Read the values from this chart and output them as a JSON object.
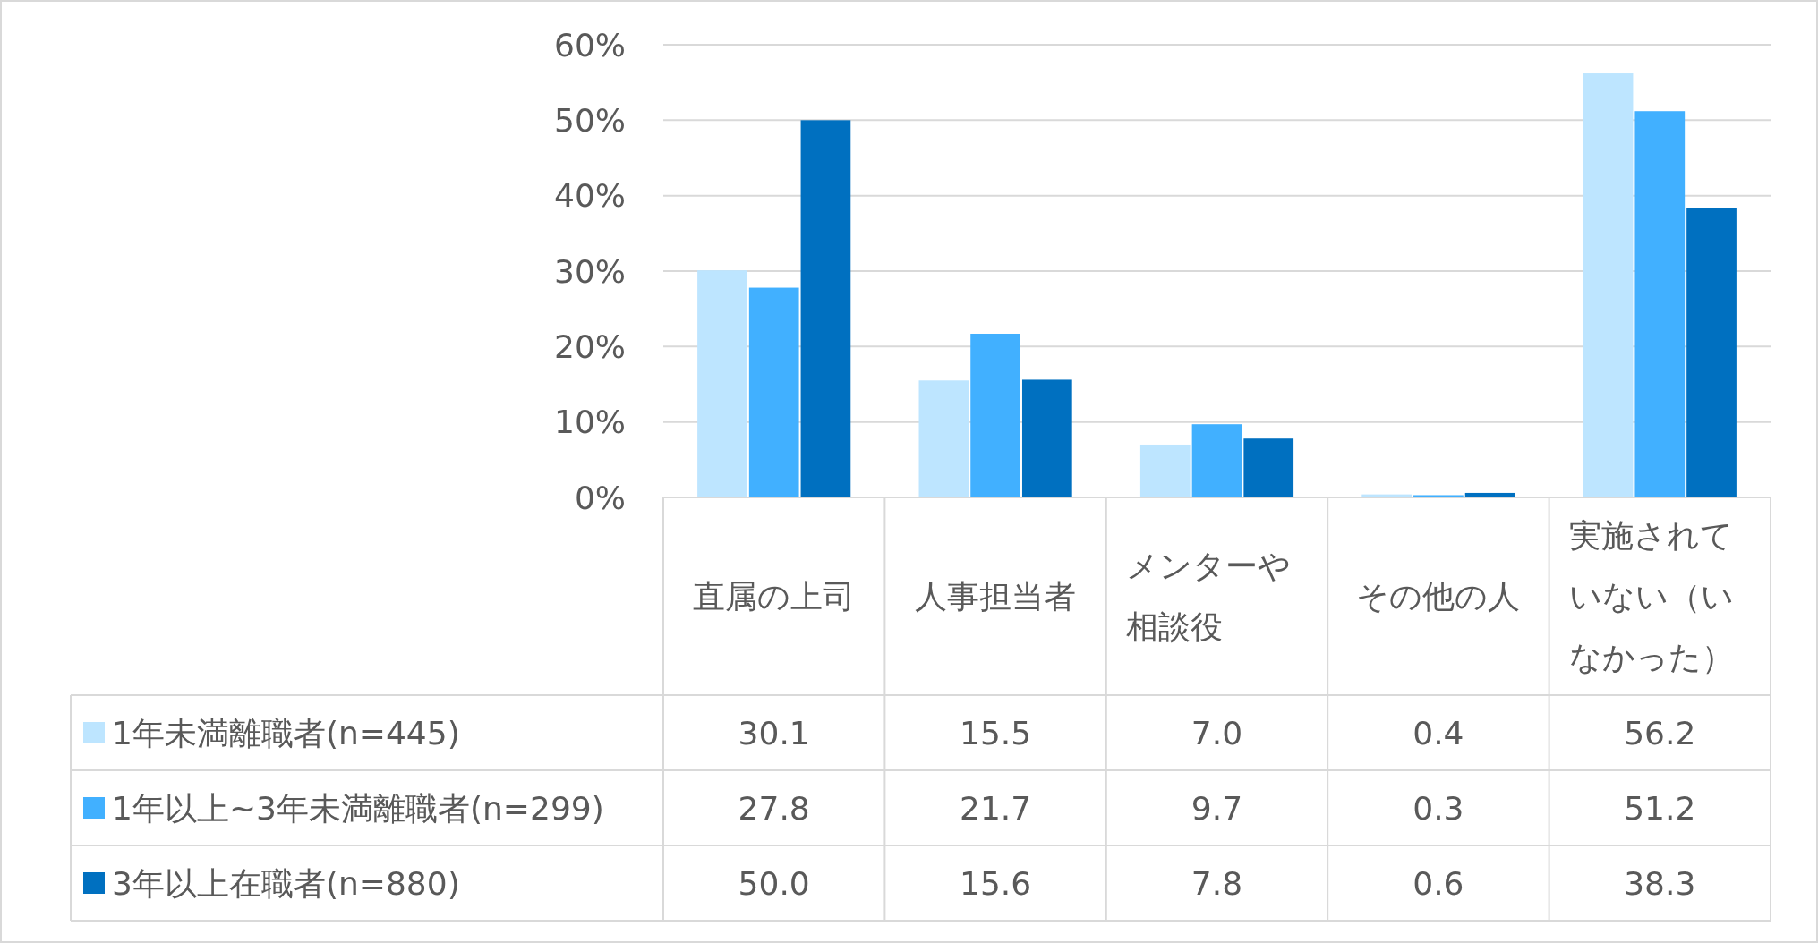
{
  "chart_data": {
    "type": "bar",
    "categories": [
      "直属の上司",
      "人事担当者",
      "メンターや相談役",
      "その他の人",
      "実施されていない（いなかった）"
    ],
    "series": [
      {
        "name": "1年未満離職者(n=445)",
        "color": "#bde5ff",
        "values": [
          30.1,
          15.5,
          7.0,
          0.4,
          56.2
        ],
        "value_labels": [
          "30.1",
          "15.5",
          "7.0",
          "0.4",
          "56.2"
        ]
      },
      {
        "name": "1年以上~3年未満離職者(n=299)",
        "color": "#41b0ff",
        "values": [
          27.8,
          21.7,
          9.7,
          0.3,
          51.2
        ],
        "value_labels": [
          "27.8",
          "21.7",
          "9.7",
          "0.3",
          "51.2"
        ]
      },
      {
        "name": "3年以上在職者(n=880)",
        "color": "#0070c0",
        "values": [
          50.0,
          15.6,
          7.8,
          0.6,
          38.3
        ],
        "value_labels": [
          "50.0",
          "15.6",
          "7.8",
          "0.6",
          "38.3"
        ]
      }
    ],
    "ylim": [
      0,
      60
    ],
    "yticks": [
      {
        "value": 0,
        "label": "0%"
      },
      {
        "value": 10,
        "label": "10%"
      },
      {
        "value": 20,
        "label": "20%"
      },
      {
        "value": 30,
        "label": "30%"
      },
      {
        "value": 40,
        "label": "40%"
      },
      {
        "value": 50,
        "label": "50%"
      },
      {
        "value": 60,
        "label": "60%"
      }
    ],
    "grid": "y",
    "legend": "bottom left"
  }
}
